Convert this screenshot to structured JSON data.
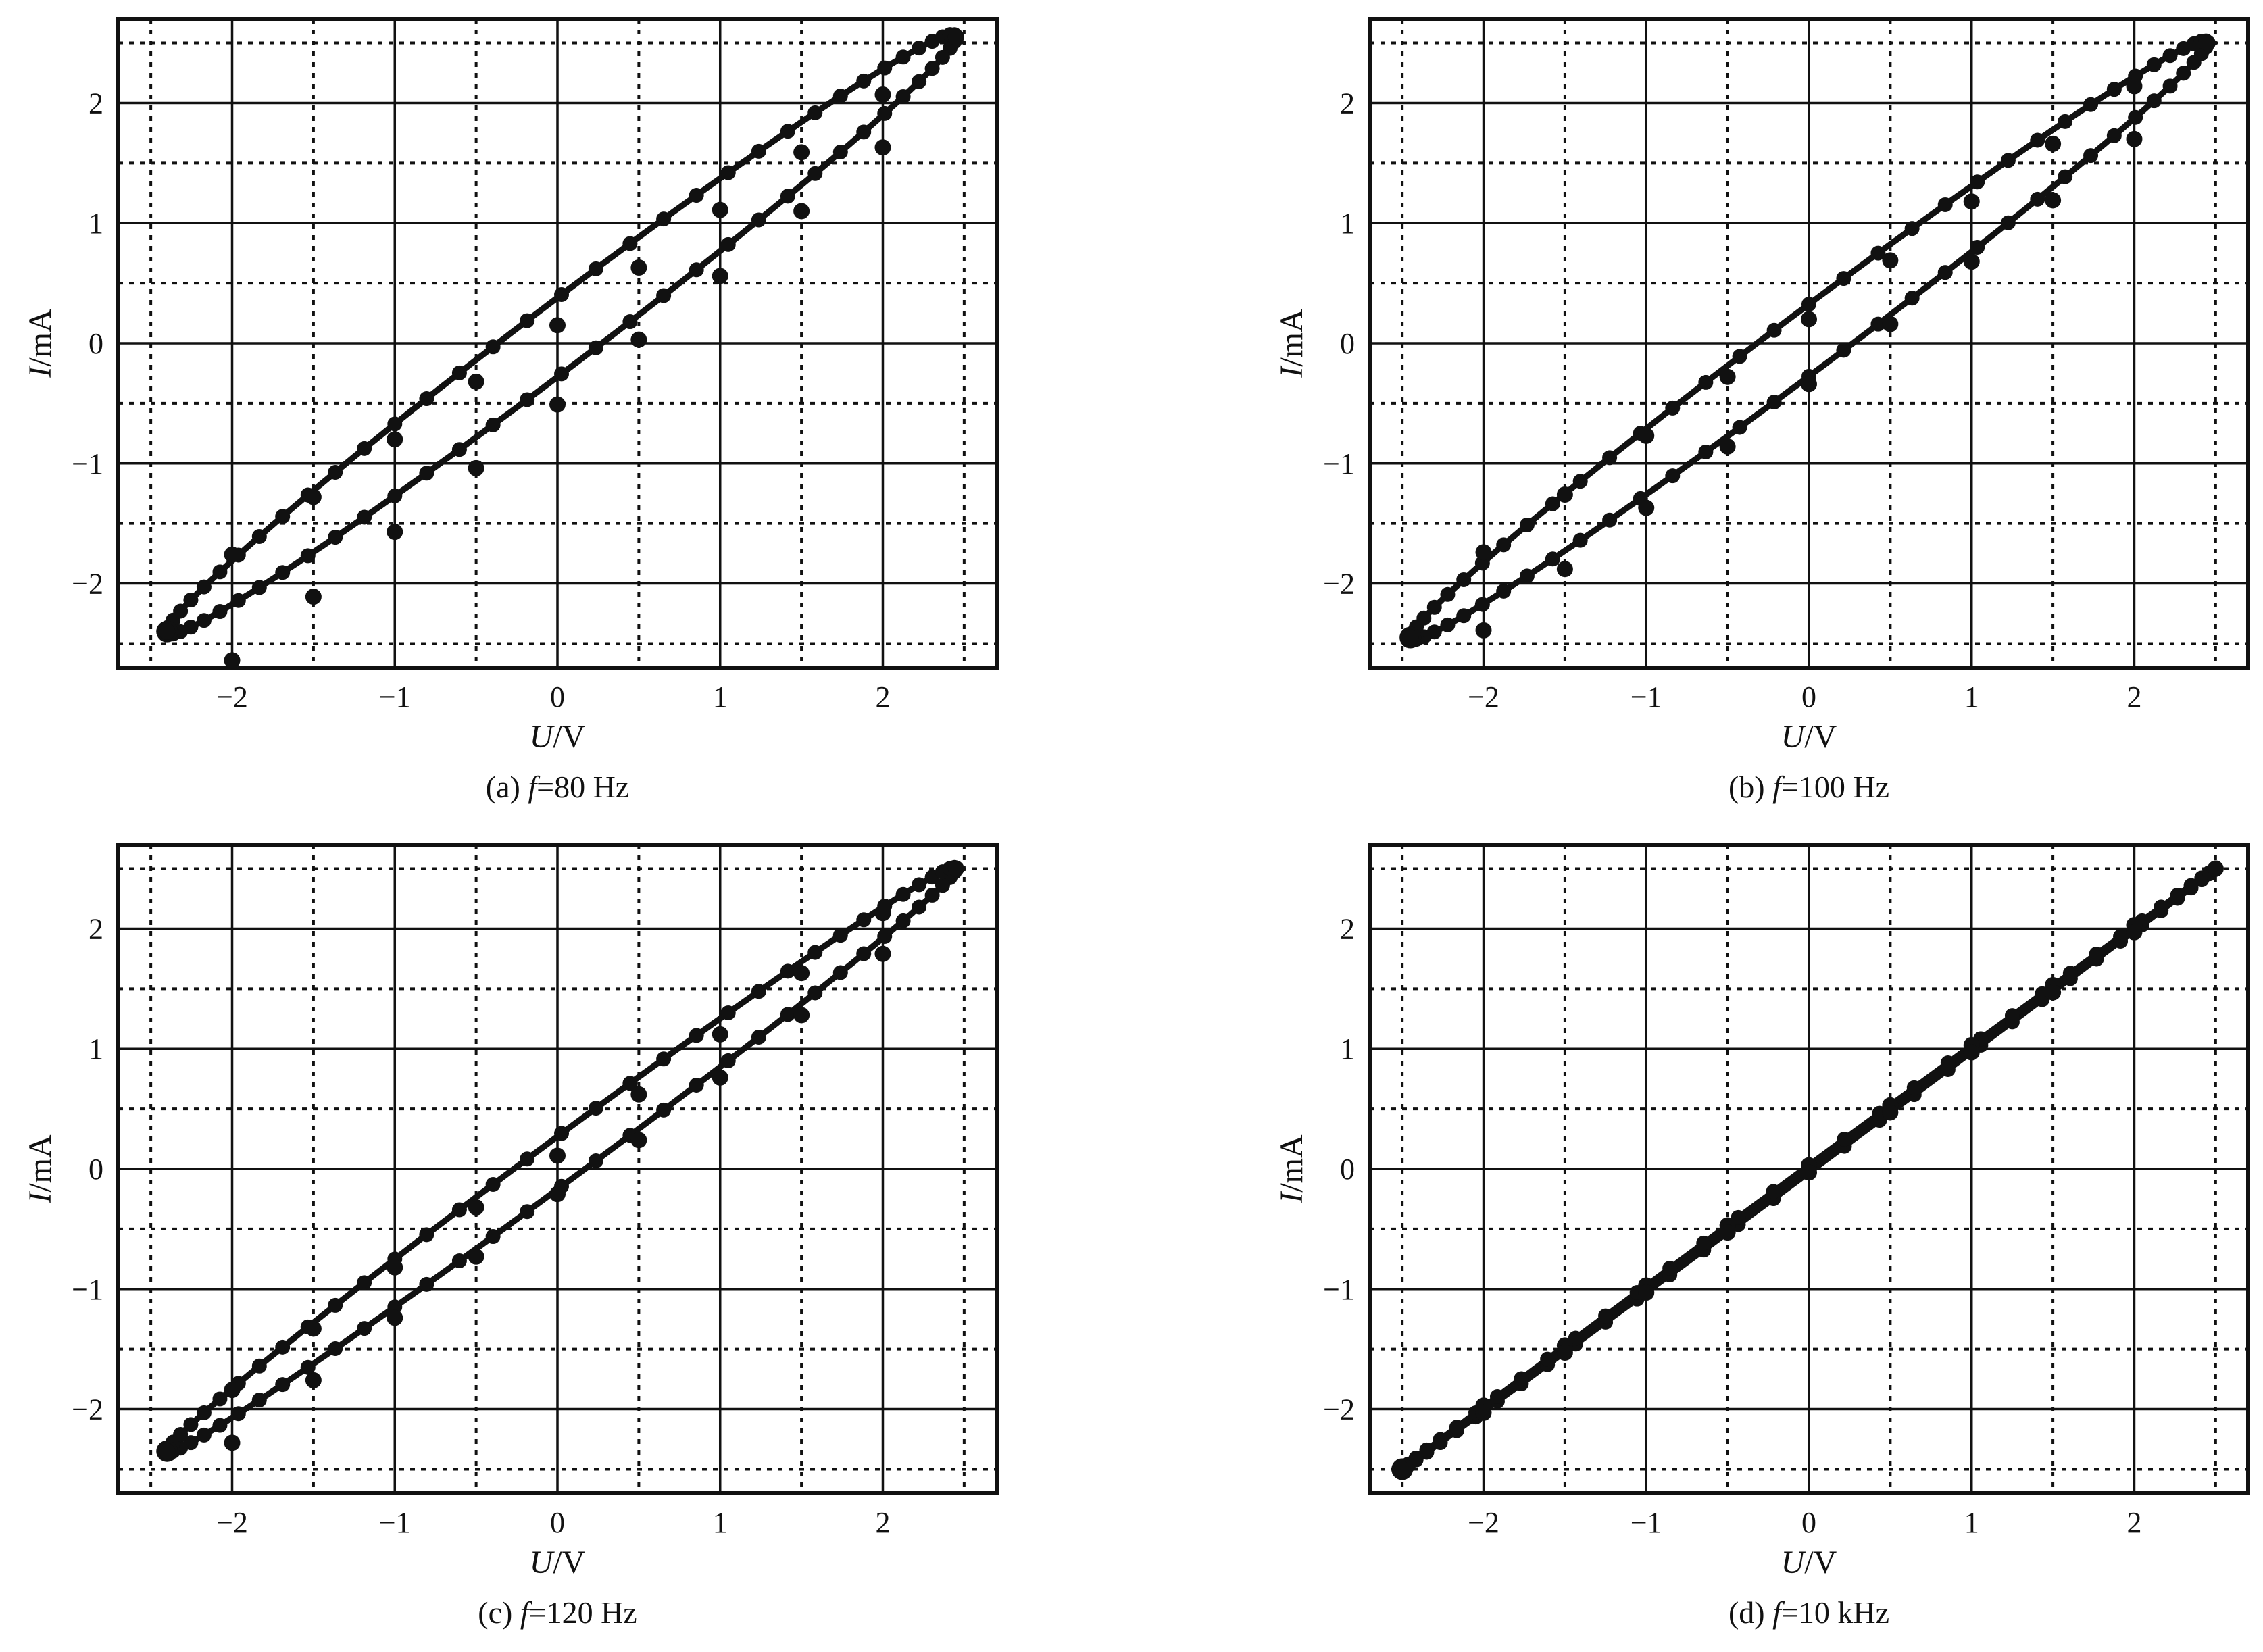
{
  "chart_data": [
    {
      "type": "line",
      "caption": {
        "prefix": "(a) ",
        "symbol": "f",
        "suffix": "=80 Hz"
      },
      "xlabel": {
        "symbol": "U",
        "unit": "/V"
      },
      "ylabel": {
        "symbol": "I",
        "unit": "/mA"
      },
      "xlim": [
        -2.7,
        2.7
      ],
      "ylim": [
        -2.7,
        2.7
      ],
      "xticks": [
        -2,
        -1,
        0,
        1,
        2
      ],
      "yticks": [
        -2,
        -1,
        0,
        1,
        2
      ],
      "grid": true,
      "loop": {
        "peak": [
          2.45,
          2.55
        ],
        "valley": [
          -2.4,
          -2.4
        ],
        "halfwidth_current": 0.33
      },
      "series": [
        {
          "values": [
            [
              -2.4,
              -2.4
            ],
            [
              -2.0,
              -1.76
            ],
            [
              -1.5,
              -1.28
            ],
            [
              -1.0,
              -0.8
            ],
            [
              -0.5,
              -0.32
            ],
            [
              0.0,
              0.15
            ],
            [
              0.5,
              0.63
            ],
            [
              1.0,
              1.11
            ],
            [
              1.5,
              1.59
            ],
            [
              2.0,
              2.07
            ],
            [
              2.45,
              2.55
            ]
          ]
        },
        {
          "values": [
            [
              2.45,
              2.55
            ],
            [
              2.0,
              1.63
            ],
            [
              1.5,
              1.1
            ],
            [
              1.0,
              0.56
            ],
            [
              0.5,
              0.03
            ],
            [
              0.0,
              -0.51
            ],
            [
              -0.5,
              -1.04
            ],
            [
              -1.0,
              -1.57
            ],
            [
              -1.5,
              -2.11
            ],
            [
              -2.0,
              -2.64
            ],
            [
              -2.4,
              -2.4
            ]
          ]
        }
      ]
    },
    {
      "type": "line",
      "caption": {
        "prefix": "(b) ",
        "symbol": "f",
        "suffix": "=100 Hz"
      },
      "xlabel": {
        "symbol": "U",
        "unit": "/V"
      },
      "ylabel": {
        "symbol": "I",
        "unit": "/mA"
      },
      "xlim": [
        -2.7,
        2.7
      ],
      "ylim": [
        -2.7,
        2.7
      ],
      "xticks": [
        -2,
        -1,
        0,
        1,
        2
      ],
      "yticks": [
        -2,
        -1,
        0,
        1,
        2
      ],
      "grid": true,
      "loop": {
        "peak": [
          2.45,
          2.5
        ],
        "valley": [
          -2.45,
          -2.45
        ],
        "halfwidth_current": 0.3
      },
      "series": [
        {
          "values": [
            [
              -2.45,
              -2.45
            ],
            [
              -2.0,
              -1.74
            ],
            [
              -1.5,
              -1.26
            ],
            [
              -1.0,
              -0.77
            ],
            [
              -0.5,
              -0.28
            ],
            [
              0.0,
              0.2
            ],
            [
              0.5,
              0.69
            ],
            [
              1.0,
              1.18
            ],
            [
              1.5,
              1.66
            ],
            [
              2.0,
              2.14
            ],
            [
              2.45,
              2.5
            ]
          ]
        },
        {
          "values": [
            [
              2.45,
              2.5
            ],
            [
              2.0,
              1.7
            ],
            [
              1.5,
              1.19
            ],
            [
              1.0,
              0.68
            ],
            [
              0.5,
              0.16
            ],
            [
              0.0,
              -0.34
            ],
            [
              -0.5,
              -0.86
            ],
            [
              -1.0,
              -1.37
            ],
            [
              -1.5,
              -1.88
            ],
            [
              -2.0,
              -2.39
            ],
            [
              -2.45,
              -2.45
            ]
          ]
        }
      ]
    },
    {
      "type": "line",
      "caption": {
        "prefix": "(c) ",
        "symbol": "f",
        "suffix": "=120 Hz"
      },
      "xlabel": {
        "symbol": "U",
        "unit": "/V"
      },
      "ylabel": {
        "symbol": "I",
        "unit": "/mA"
      },
      "xlim": [
        -2.7,
        2.7
      ],
      "ylim": [
        -2.7,
        2.7
      ],
      "xticks": [
        -2,
        -1,
        0,
        1,
        2
      ],
      "yticks": [
        -2,
        -1,
        0,
        1,
        2
      ],
      "grid": true,
      "loop": {
        "peak": [
          2.45,
          2.5
        ],
        "valley": [
          -2.4,
          -2.35
        ],
        "halfwidth_current": 0.22
      },
      "series": [
        {
          "values": [
            [
              -2.4,
              -2.35
            ],
            [
              -2.0,
              -1.84
            ],
            [
              -1.5,
              -1.33
            ],
            [
              -1.0,
              -0.82
            ],
            [
              -0.5,
              -0.32
            ],
            [
              0.0,
              0.11
            ],
            [
              0.5,
              0.62
            ],
            [
              1.0,
              1.12
            ],
            [
              1.5,
              1.63
            ],
            [
              2.0,
              2.13
            ],
            [
              2.45,
              2.5
            ]
          ]
        },
        {
          "values": [
            [
              2.45,
              2.5
            ],
            [
              2.0,
              1.79
            ],
            [
              1.5,
              1.28
            ],
            [
              1.0,
              0.76
            ],
            [
              0.5,
              0.24
            ],
            [
              0.0,
              -0.21
            ],
            [
              -0.5,
              -0.73
            ],
            [
              -1.0,
              -1.24
            ],
            [
              -1.5,
              -1.76
            ],
            [
              -2.0,
              -2.28
            ],
            [
              -2.4,
              -2.35
            ]
          ]
        }
      ]
    },
    {
      "type": "line",
      "caption": {
        "prefix": "(d) ",
        "symbol": "f",
        "suffix": "=10 kHz"
      },
      "xlabel": {
        "symbol": "U",
        "unit": "/V"
      },
      "ylabel": {
        "symbol": "I",
        "unit": "/mA"
      },
      "xlim": [
        -2.7,
        2.7
      ],
      "ylim": [
        -2.7,
        2.7
      ],
      "xticks": [
        -2,
        -1,
        0,
        1,
        2
      ],
      "yticks": [
        -2,
        -1,
        0,
        1,
        2
      ],
      "grid": true,
      "loop": {
        "peak": [
          2.5,
          2.5
        ],
        "valley": [
          -2.5,
          -2.5
        ],
        "halfwidth_current": 0.03
      },
      "series": [
        {
          "values": [
            [
              -2.5,
              -2.5
            ],
            [
              -2.0,
              -1.97
            ],
            [
              -1.5,
              -1.47
            ],
            [
              -1.0,
              -0.97
            ],
            [
              -0.5,
              -0.47
            ],
            [
              0.0,
              0.03
            ],
            [
              0.5,
              0.53
            ],
            [
              1.0,
              1.03
            ],
            [
              1.5,
              1.53
            ],
            [
              2.0,
              2.03
            ],
            [
              2.5,
              2.5
            ]
          ]
        },
        {
          "values": [
            [
              2.5,
              2.5
            ],
            [
              2.0,
              1.97
            ],
            [
              1.5,
              1.47
            ],
            [
              1.0,
              0.97
            ],
            [
              0.5,
              0.47
            ],
            [
              0.0,
              -0.03
            ],
            [
              -0.5,
              -0.53
            ],
            [
              -1.0,
              -1.03
            ],
            [
              -1.5,
              -1.53
            ],
            [
              -2.0,
              -2.03
            ],
            [
              -2.5,
              -2.5
            ]
          ]
        }
      ]
    }
  ]
}
